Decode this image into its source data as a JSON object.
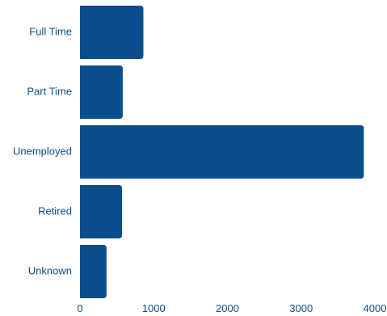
{
  "chart_data": {
    "type": "bar",
    "orientation": "horizontal",
    "title": "",
    "xlabel": "",
    "ylabel": "",
    "categories": [
      "Full Time",
      "Part Time",
      "Unemployed",
      "Retired",
      "Unknown"
    ],
    "values": [
      860,
      580,
      3850,
      570,
      360
    ],
    "xlim": [
      0,
      4000
    ],
    "xticks": [
      0,
      1000,
      2000,
      3000,
      4000
    ],
    "grid": false,
    "legend": "none",
    "colors": {
      "bar": "#0a4f8b",
      "text": "#0d4f8b"
    }
  }
}
